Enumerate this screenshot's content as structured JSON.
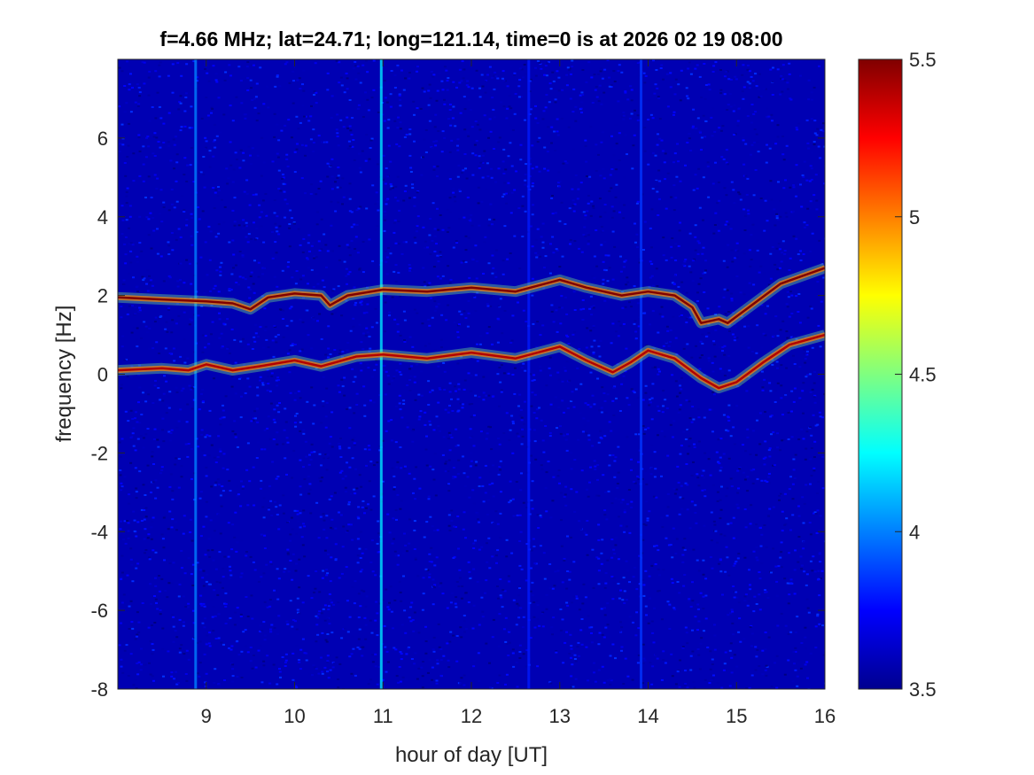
{
  "chart_data": {
    "type": "heatmap",
    "title": "f=4.66 MHz;  lat=24.71; long=121.14, time=0 is at 2026 02 19 08:00",
    "xlabel": "hour of day [UT]",
    "ylabel": "frequency [Hz]",
    "xlim": [
      8,
      16
    ],
    "ylim": [
      -8,
      8
    ],
    "xticks": [
      9,
      10,
      11,
      12,
      13,
      14,
      15,
      16
    ],
    "yticks": [
      -8,
      -6,
      -4,
      -2,
      0,
      2,
      4,
      6
    ],
    "colorbar": {
      "clim": [
        3.5,
        5.5
      ],
      "ticks": [
        3.5,
        4,
        4.5,
        5,
        5.5
      ],
      "colormap": "jet"
    },
    "background_level": 3.6,
    "traces": [
      {
        "points": [
          [
            8.0,
            1.95
          ],
          [
            8.5,
            1.9
          ],
          [
            9.0,
            1.85
          ],
          [
            9.3,
            1.8
          ],
          [
            9.5,
            1.65
          ],
          [
            9.7,
            1.95
          ],
          [
            10.0,
            2.05
          ],
          [
            10.3,
            2.0
          ],
          [
            10.4,
            1.75
          ],
          [
            10.6,
            2.0
          ],
          [
            11.0,
            2.15
          ],
          [
            11.5,
            2.1
          ],
          [
            12.0,
            2.2
          ],
          [
            12.5,
            2.1
          ],
          [
            13.0,
            2.4
          ],
          [
            13.3,
            2.2
          ],
          [
            13.7,
            2.0
          ],
          [
            14.0,
            2.1
          ],
          [
            14.3,
            2.0
          ],
          [
            14.5,
            1.7
          ],
          [
            14.6,
            1.3
          ],
          [
            14.8,
            1.4
          ],
          [
            14.9,
            1.3
          ],
          [
            15.2,
            1.8
          ],
          [
            15.5,
            2.3
          ],
          [
            16.0,
            2.7
          ]
        ],
        "level": 5.5
      },
      {
        "points": [
          [
            8.0,
            0.1
          ],
          [
            8.5,
            0.15
          ],
          [
            8.8,
            0.1
          ],
          [
            9.0,
            0.25
          ],
          [
            9.3,
            0.1
          ],
          [
            9.6,
            0.2
          ],
          [
            10.0,
            0.35
          ],
          [
            10.3,
            0.2
          ],
          [
            10.7,
            0.45
          ],
          [
            11.0,
            0.5
          ],
          [
            11.5,
            0.4
          ],
          [
            12.0,
            0.55
          ],
          [
            12.5,
            0.4
          ],
          [
            13.0,
            0.7
          ],
          [
            13.3,
            0.35
          ],
          [
            13.6,
            0.05
          ],
          [
            13.8,
            0.3
          ],
          [
            14.0,
            0.6
          ],
          [
            14.3,
            0.4
          ],
          [
            14.6,
            -0.1
          ],
          [
            14.8,
            -0.35
          ],
          [
            15.0,
            -0.2
          ],
          [
            15.3,
            0.3
          ],
          [
            15.6,
            0.75
          ],
          [
            16.0,
            1.0
          ]
        ],
        "level": 5.4
      }
    ],
    "vertical_streaks": [
      {
        "x": 8.88,
        "level": 4.0
      },
      {
        "x": 10.98,
        "level": 4.2
      },
      {
        "x": 12.65,
        "level": 3.8
      },
      {
        "x": 13.92,
        "level": 3.85
      }
    ]
  }
}
